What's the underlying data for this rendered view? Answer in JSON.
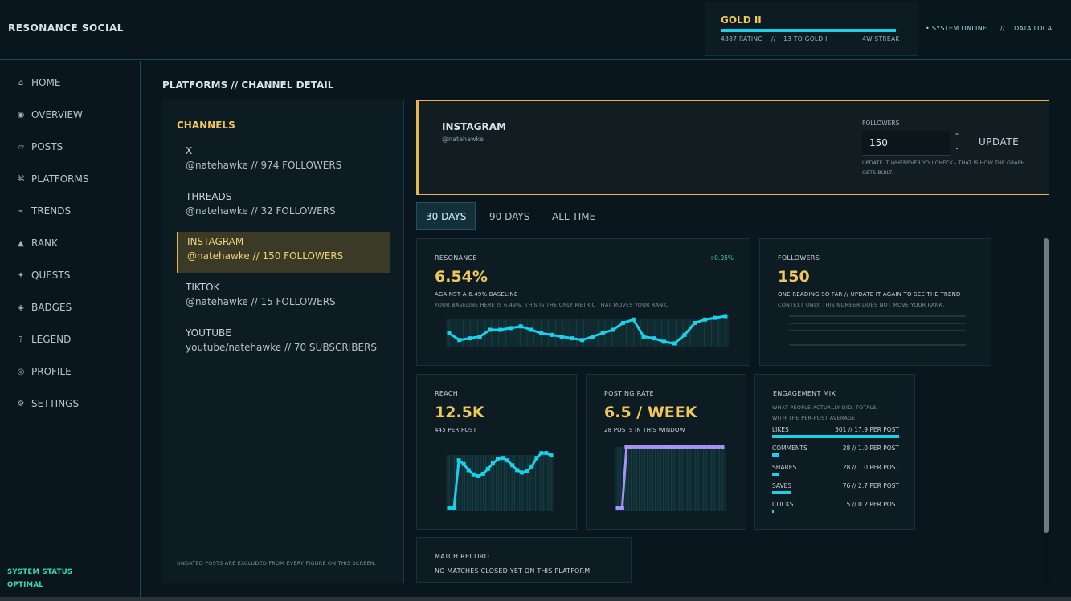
{
  "app": {
    "brand": "RESONANCE SOCIAL"
  },
  "rank": {
    "title": "GOLD II",
    "rating": "4387 RATING",
    "sep1": "//",
    "to_next": "13 TO GOLD I",
    "streak": "4W STREAK",
    "progress_pct": 100
  },
  "system": {
    "online": "• SYSTEM ONLINE",
    "sep": "//",
    "data": "DATA LOCAL",
    "status_label": "SYSTEM STATUS",
    "status_value": "OPTIMAL"
  },
  "nav": {
    "items": [
      {
        "label": "HOME",
        "icon": "⌂",
        "icon_name": "home-icon"
      },
      {
        "label": "OVERVIEW",
        "icon": "◉",
        "icon_name": "overview-icon"
      },
      {
        "label": "POSTS",
        "icon": "▱",
        "icon_name": "posts-icon"
      },
      {
        "label": "PLATFORMS",
        "icon": "⌘",
        "icon_name": "platforms-icon"
      },
      {
        "label": "TRENDS",
        "icon": "⌁",
        "icon_name": "trends-icon"
      },
      {
        "label": "RANK",
        "icon": "▲",
        "icon_name": "rank-icon"
      },
      {
        "label": "QUESTS",
        "icon": "✦",
        "icon_name": "quests-icon"
      },
      {
        "label": "BADGES",
        "icon": "◈",
        "icon_name": "badges-icon"
      },
      {
        "label": "LEGEND",
        "icon": "?",
        "icon_name": "legend-icon"
      },
      {
        "label": "PROFILE",
        "icon": "◎",
        "icon_name": "profile-icon"
      },
      {
        "label": "SETTINGS",
        "icon": "⚙",
        "icon_name": "settings-icon"
      }
    ]
  },
  "page": {
    "title": "PLATFORMS // CHANNEL DETAIL"
  },
  "channels": {
    "heading": "CHANNELS",
    "items": [
      {
        "name": "X",
        "meta": "@natehawke  //  974 FOLLOWERS"
      },
      {
        "name": "THREADS",
        "meta": "@natehawke  //  32 FOLLOWERS"
      },
      {
        "name": "INSTAGRAM",
        "meta": "@natehawke  //  150 FOLLOWERS",
        "active": true
      },
      {
        "name": "TIKTOK",
        "meta": "@natehawke  //  15 FOLLOWERS"
      },
      {
        "name": "YOUTUBE",
        "meta": "youtube/natehawke  //  70 SUBSCRIBERS"
      }
    ],
    "footnote": "UNDATED POSTS ARE EXCLUDED FROM EVERY FIGURE ON THIS SCREEN."
  },
  "detail": {
    "platform": "INSTAGRAM",
    "handle": "@natehawke",
    "followers_label": "FOLLOWERS",
    "followers_value": "150",
    "update_label": "UPDATE",
    "update_note": "UPDATE IT WHENEVER YOU CHECK - THAT IS HOW THE GRAPH GETS BUILT."
  },
  "tabs": [
    {
      "label": "30 DAYS",
      "active": true
    },
    {
      "label": "90 DAYS"
    },
    {
      "label": "ALL TIME"
    }
  ],
  "cards": {
    "resonance": {
      "label": "RESONANCE",
      "delta": "+0.05%",
      "value": "6.54%",
      "sub": "AGAINST A 6.49% BASELINE",
      "note": "YOUR BASELINE HERE IS 6.49%. THIS IS THE ONLY METRIC THAT MOVES YOUR RANK.",
      "trend": [
        6.49,
        6.47,
        6.475,
        6.48,
        6.5,
        6.5,
        6.505,
        6.51,
        6.5,
        6.49,
        6.485,
        6.48,
        6.475,
        6.47,
        6.48,
        6.49,
        6.5,
        6.52,
        6.53,
        6.48,
        6.475,
        6.465,
        6.46,
        6.485,
        6.52,
        6.53,
        6.535,
        6.54
      ]
    },
    "followers": {
      "label": "FOLLOWERS",
      "value": "150",
      "sub": "ONE READING SO FAR // UPDATE IT AGAIN TO SEE THE TREND",
      "note": "CONTEXT ONLY. THIS NUMBER DOES NOT MOVE YOUR RANK."
    },
    "reach": {
      "label": "REACH",
      "value": "12.5K",
      "sub": "445 PER POST",
      "trend": [
        0,
        0,
        0.78,
        0.72,
        0.62,
        0.55,
        0.52,
        0.56,
        0.64,
        0.73,
        0.8,
        0.82,
        0.78,
        0.7,
        0.62,
        0.58,
        0.6,
        0.68,
        0.82,
        0.9,
        0.9,
        0.86
      ]
    },
    "posting": {
      "label": "POSTING RATE",
      "value": "6.5 / WEEK",
      "sub": "28 POSTS IN THIS WINDOW",
      "trend": [
        0,
        0,
        1,
        1,
        1,
        1,
        1,
        1,
        1,
        1,
        1,
        1,
        1,
        1,
        1,
        1,
        1,
        1,
        1,
        1,
        1,
        1,
        1,
        1,
        1
      ]
    },
    "engagement": {
      "label": "ENGAGEMENT MIX",
      "note1": "WHAT PEOPLE ACTUALLY DID. TOTALS,",
      "note2": "WITH THE PER-POST AVERAGE.",
      "rows": [
        {
          "name": "LIKES",
          "value": "501  //  17.9 PER POST",
          "share": 1.0
        },
        {
          "name": "COMMENTS",
          "value": "28  //  1.0 PER POST",
          "share": 0.06
        },
        {
          "name": "SHARES",
          "value": "28  //  1.0 PER POST",
          "share": 0.06
        },
        {
          "name": "SAVES",
          "value": "76  //  2.7 PER POST",
          "share": 0.15
        },
        {
          "name": "CLICKS",
          "value": "5  //  0.2 PER POST",
          "share": 0.01
        }
      ]
    },
    "match": {
      "label": "MATCH RECORD",
      "sub": "NO MATCHES CLOSED YET ON THIS PLATFORM"
    }
  },
  "colors": {
    "accent": "#19d2ea",
    "gold": "#f0c75a",
    "purple": "#a892f5",
    "status": "#37d9b0"
  }
}
